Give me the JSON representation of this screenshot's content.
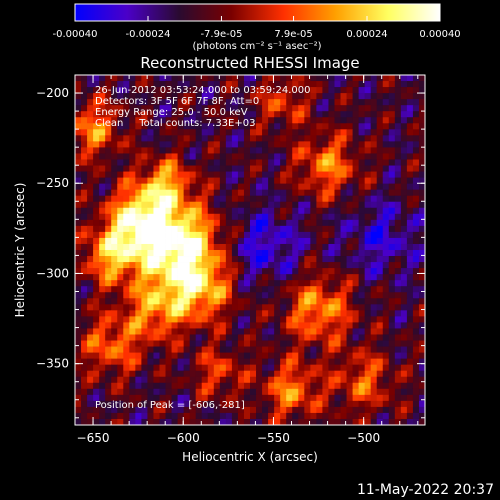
{
  "chart_data": {
    "type": "heatmap",
    "title": "Reconstructed RHESSI Image",
    "xlabel": "Heliocentric X (arcsec)",
    "ylabel": "Heliocentric Y (arcsec)",
    "xlim": [
      -660,
      -466
    ],
    "ylim": [
      -384,
      -190
    ],
    "x_ticks": [
      -650,
      -600,
      -550,
      -500
    ],
    "y_ticks": [
      -350,
      -300,
      -250,
      -200
    ],
    "colorbar": {
      "range": [
        -0.0004,
        0.0004
      ],
      "tick_values": [
        -0.0004,
        -0.00024,
        -7.9e-05,
        7.9e-05,
        0.00024,
        0.0004
      ],
      "tick_labels": [
        "-0.00040",
        "-0.00024",
        "-7.9e-05",
        "7.9e-05",
        "0.00024",
        "0.00040"
      ],
      "unit_label": "(photons cm⁻² s⁻¹ asec⁻²)",
      "colors": [
        "#0000ff",
        "#4b00c8",
        "#2a0a30",
        "#7a0000",
        "#ff3000",
        "#ffa000",
        "#ffff60",
        "#ffffff"
      ]
    },
    "annotations": [
      "26-Jun-2012 03:53:24.000 to 03:59:24.000",
      "Detectors: 3F 5F 6F 7F 8F, Att=0",
      "Energy Range: 25.0 - 50.0 keV",
      "Clean     Total counts: 7.33E+03"
    ],
    "peak_label": "Position of Peak = [-606,-281]",
    "peak": [
      -606,
      -281
    ],
    "sources": [
      {
        "x": -603,
        "y": -285,
        "amp": 1.0,
        "sigma": 16
      },
      {
        "x": -625,
        "y": -270,
        "amp": 0.75,
        "sigma": 12
      },
      {
        "x": -640,
        "y": -290,
        "amp": 0.6,
        "sigma": 11
      },
      {
        "x": -590,
        "y": -310,
        "amp": 0.55,
        "sigma": 12
      },
      {
        "x": -615,
        "y": -320,
        "amp": 0.5,
        "sigma": 12
      },
      {
        "x": -640,
        "y": -340,
        "amp": 0.45,
        "sigma": 12
      },
      {
        "x": -610,
        "y": -250,
        "amp": 0.55,
        "sigma": 10
      },
      {
        "x": -650,
        "y": -220,
        "amp": 0.5,
        "sigma": 11
      },
      {
        "x": -520,
        "y": -240,
        "amp": 0.5,
        "sigma": 12
      },
      {
        "x": -525,
        "y": -320,
        "amp": 0.55,
        "sigma": 13
      },
      {
        "x": -540,
        "y": -365,
        "amp": 0.5,
        "sigma": 11
      },
      {
        "x": -500,
        "y": -360,
        "amp": 0.4,
        "sigma": 12
      },
      {
        "x": -545,
        "y": -205,
        "amp": 0.35,
        "sigma": 10
      },
      {
        "x": -580,
        "y": -355,
        "amp": 0.35,
        "sigma": 10
      },
      {
        "x": -555,
        "y": -285,
        "amp": -0.35,
        "sigma": 14
      },
      {
        "x": -490,
        "y": -280,
        "amp": -0.3,
        "sigma": 14
      }
    ]
  },
  "footer": {
    "timestamp": "11-May-2022 20:37"
  }
}
